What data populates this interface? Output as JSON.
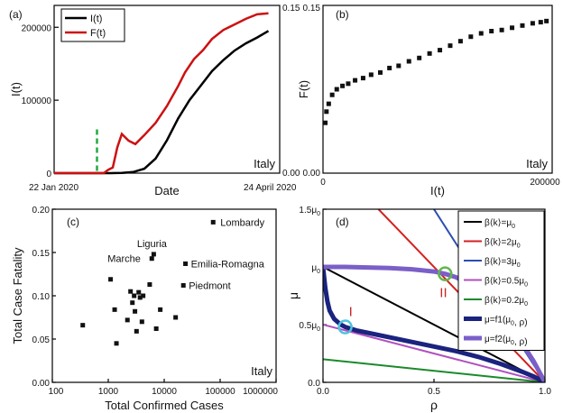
{
  "chart_data": [
    {
      "panel": "(a)",
      "type": "line",
      "annotation": "Italy",
      "xlabel": "Date",
      "x_tick_labels": [
        "22 Jan 2020",
        "24 April 2020"
      ],
      "left_ylabel": "I(t)",
      "right_ylabel": "F(t)",
      "left_y_ticks": [
        "0",
        "100000",
        "200000"
      ],
      "right_y_ticks": [
        "0.00",
        "0.15"
      ],
      "ylim_left": [
        0,
        230000
      ],
      "ylim_right": [
        0,
        0.15
      ],
      "legend_placement": "top-left",
      "series": [
        {
          "name": "I(t)",
          "color": "#000000",
          "axis": "left",
          "x": [
            0,
            25,
            30,
            35,
            40,
            45,
            50,
            55,
            60,
            65,
            70,
            75,
            80,
            85,
            90,
            95
          ],
          "values": [
            0,
            0,
            200,
            1500,
            6000,
            20000,
            45000,
            75000,
            100000,
            120000,
            140000,
            155000,
            168000,
            178000,
            186000,
            195000
          ]
        },
        {
          "name": "F(t)",
          "color": "#cc1111",
          "axis": "right",
          "x": [
            0,
            17,
            22,
            24,
            26,
            28,
            30,
            33,
            36,
            40,
            45,
            50,
            55,
            58,
            62,
            66,
            70,
            75,
            80,
            85,
            90,
            95
          ],
          "values": [
            0,
            0,
            0,
            0.003,
            0.005,
            0.023,
            0.035,
            0.029,
            0.026,
            0.034,
            0.045,
            0.06,
            0.078,
            0.09,
            0.102,
            0.11,
            0.12,
            0.128,
            0.133,
            0.138,
            0.142,
            0.143
          ]
        }
      ],
      "vertical_marker": {
        "x": 19,
        "color": "#22aa44",
        "style": "dashed"
      }
    },
    {
      "panel": "(b)",
      "type": "scatter",
      "annotation": "Italy",
      "xlabel": "I(t)",
      "ylabel": "F(t)",
      "x_tick_labels": [
        "0",
        "200000"
      ],
      "y_tick_labels": [
        "0.00",
        "0.15"
      ],
      "xlim": [
        0,
        200000
      ],
      "ylim": [
        0,
        0.15
      ],
      "x": [
        2000,
        3000,
        5000,
        8000,
        12000,
        17000,
        22000,
        28000,
        35000,
        42000,
        50000,
        58000,
        66000,
        75000,
        84000,
        93000,
        102000,
        111000,
        120000,
        129000,
        138000,
        147000,
        156000,
        165000,
        174000,
        183000,
        190000,
        195000
      ],
      "values": [
        0.045,
        0.055,
        0.062,
        0.07,
        0.075,
        0.078,
        0.08,
        0.083,
        0.085,
        0.088,
        0.09,
        0.094,
        0.096,
        0.1,
        0.103,
        0.107,
        0.11,
        0.114,
        0.118,
        0.122,
        0.125,
        0.127,
        0.128,
        0.13,
        0.132,
        0.134,
        0.135,
        0.136
      ]
    },
    {
      "panel": "(c)",
      "type": "scatter",
      "annotation": "Italy",
      "xlabel": "Total Confirmed Cases",
      "ylabel": "Total Case Fatality",
      "x_scale": "log",
      "xlim": [
        100,
        1000000
      ],
      "ylim": [
        0,
        0.2
      ],
      "x_tick_labels": [
        "100",
        "1000",
        "10000",
        "100000",
        "1000000"
      ],
      "y_tick_labels": [
        "0.00",
        "0.05",
        "0.10",
        "0.15",
        "0.20"
      ],
      "x": [
        350,
        1100,
        1300,
        1400,
        2200,
        2500,
        2700,
        2900,
        3000,
        3200,
        3500,
        3700,
        4000,
        4200,
        5500,
        6000,
        6500,
        7200,
        8500,
        16000,
        22000,
        24000,
        75000
      ],
      "values": [
        0.066,
        0.119,
        0.084,
        0.045,
        0.072,
        0.105,
        0.092,
        0.1,
        0.082,
        0.059,
        0.104,
        0.098,
        0.07,
        0.1,
        0.113,
        0.143,
        0.148,
        0.062,
        0.084,
        0.075,
        0.112,
        0.137,
        0.185
      ],
      "point_labels": [
        {
          "text": "Lombardy",
          "x": 75000,
          "y": 0.185
        },
        {
          "text": "Liguria",
          "x": 6500,
          "y": 0.148
        },
        {
          "text": "Marche",
          "x": 5500,
          "y": 0.143
        },
        {
          "text": "Emilia-Romagna",
          "x": 24000,
          "y": 0.137
        },
        {
          "text": "Piedmont",
          "x": 22000,
          "y": 0.112
        }
      ]
    },
    {
      "panel": "(d)",
      "type": "line",
      "xlabel": "ρ",
      "ylabel": "μ",
      "xlim": [
        0,
        1
      ],
      "ylim": [
        0,
        1.5
      ],
      "x_tick_labels": [
        "0.0",
        "0.5",
        "1.0"
      ],
      "y_tick_labels": [
        "0.0",
        "0.5μ0",
        "μ0",
        "1.5μ0"
      ],
      "legend_placement": "top-right",
      "series": [
        {
          "name": "β⟨k⟩=μ0",
          "color": "#000000",
          "x": [
            0,
            1
          ],
          "values": [
            1.0,
            0
          ]
        },
        {
          "name": "β⟨k⟩=2μ0",
          "color": "#d42020",
          "x": [
            0.25,
            1
          ],
          "values": [
            1.5,
            0
          ]
        },
        {
          "name": "β⟨k⟩=3μ0",
          "color": "#2a4fb0",
          "x": [
            0.5,
            1
          ],
          "values": [
            1.5,
            0
          ]
        },
        {
          "name": "β⟨k⟩=0.5μ0",
          "color": "#b04fc0",
          "x": [
            0,
            1
          ],
          "values": [
            0.5,
            0
          ]
        },
        {
          "name": "β⟨k⟩=0.2μ0",
          "color": "#1a8a2a",
          "x": [
            0,
            1
          ],
          "values": [
            0.2,
            0
          ]
        },
        {
          "name": "μ=f1(μ0, ρ)",
          "color": "#1a237e",
          "x": [
            0.0,
            0.01,
            0.02,
            0.03,
            0.05,
            0.08,
            0.1,
            0.15,
            0.2,
            0.3,
            0.4,
            0.5,
            0.6,
            0.7,
            0.8,
            0.9,
            0.95,
            1.0
          ],
          "values": [
            1.0,
            0.82,
            0.7,
            0.62,
            0.55,
            0.5,
            0.48,
            0.45,
            0.43,
            0.39,
            0.35,
            0.31,
            0.27,
            0.22,
            0.16,
            0.09,
            0.05,
            0.0
          ]
        },
        {
          "name": "μ=f2(μ0, ρ)",
          "color": "#7b5fc8",
          "x": [
            0.0,
            0.1,
            0.2,
            0.3,
            0.4,
            0.5,
            0.55,
            0.6,
            0.7,
            0.8,
            0.9,
            0.95,
            1.0
          ],
          "values": [
            1.0,
            1.0,
            0.995,
            0.99,
            0.98,
            0.96,
            0.94,
            0.91,
            0.8,
            0.6,
            0.33,
            0.18,
            0.0
          ]
        }
      ],
      "markers": [
        {
          "label": "I",
          "x": 0.1,
          "y": 0.48,
          "color": "#4fc3dd"
        },
        {
          "label": "II",
          "x": 0.55,
          "y": 0.94,
          "color": "#5fb84a"
        }
      ]
    }
  ]
}
